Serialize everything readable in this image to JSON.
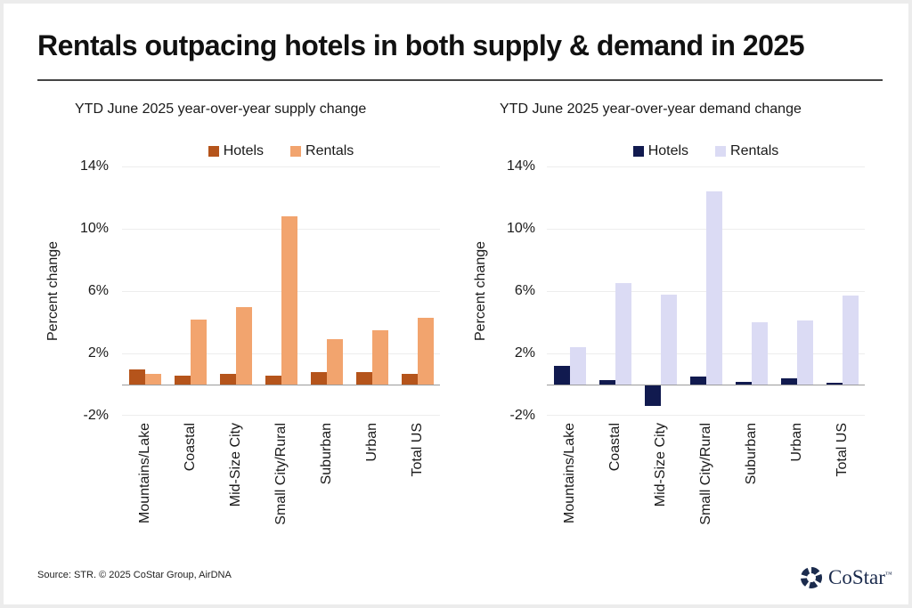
{
  "page": {
    "title": "Rentals outpacing hotels in both supply & demand in 2025",
    "source": "Source: STR. © 2025 CoStar Group, AirDNA",
    "brand": {
      "name": "CoStar",
      "trademark": "™"
    }
  },
  "colors": {
    "title": "#111111",
    "divider": "#454545",
    "grid": "#ededed",
    "zero_axis": "#9b9b9b",
    "hotels_supply": "#B5541B",
    "rentals_supply": "#F2A46E",
    "hotels_demand": "#111A4F",
    "rentals_demand": "#DBDBF4",
    "logo_navy": "#1b2b4d"
  },
  "chart_data": [
    {
      "type": "bar",
      "title": "YTD June 2025 year-over-year supply change",
      "xlabel": "",
      "ylabel": "Percent change",
      "ylim": [
        -2,
        14
      ],
      "yticks": [
        14,
        10,
        6,
        2,
        -2
      ],
      "ytick_labels": [
        "14%",
        "10%",
        "6%",
        "2%",
        "-2%"
      ],
      "grid": true,
      "legend_position": "top",
      "categories": [
        "Mountains/Lake",
        "Coastal",
        "Mid-Size City",
        "Small City/Rural",
        "Suburban",
        "Urban",
        "Total US"
      ],
      "series": [
        {
          "name": "Hotels",
          "color": "#B5541B",
          "values": [
            1.0,
            0.6,
            0.7,
            0.6,
            0.8,
            0.8,
            0.7
          ]
        },
        {
          "name": "Rentals",
          "color": "#F2A46E",
          "values": [
            0.7,
            4.2,
            5.0,
            10.8,
            2.9,
            3.5,
            4.3
          ]
        }
      ]
    },
    {
      "type": "bar",
      "title": "YTD June 2025 year-over-year demand change",
      "xlabel": "",
      "ylabel": "Percent change",
      "ylim": [
        -2,
        14
      ],
      "yticks": [
        14,
        10,
        6,
        2,
        -2
      ],
      "ytick_labels": [
        "14%",
        "10%",
        "6%",
        "2%",
        "-2%"
      ],
      "grid": true,
      "legend_position": "top",
      "categories": [
        "Mountains/Lake",
        "Coastal",
        "Mid-Size City",
        "Small City/Rural",
        "Suburban",
        "Urban",
        "Total US"
      ],
      "series": [
        {
          "name": "Hotels",
          "color": "#111A4F",
          "values": [
            1.2,
            0.3,
            -1.3,
            0.5,
            0.2,
            0.4,
            0.1
          ]
        },
        {
          "name": "Rentals",
          "color": "#DBDBF4",
          "values": [
            2.4,
            6.5,
            5.8,
            12.4,
            4.0,
            4.1,
            5.7
          ]
        }
      ]
    }
  ]
}
